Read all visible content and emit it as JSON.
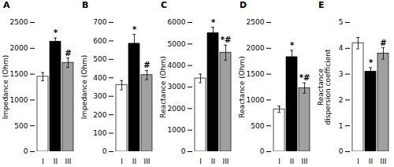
{
  "chart_data": [
    {
      "type": "bar",
      "title": "A",
      "ylabel": "Impedance (Ohm)",
      "categories": [
        "I",
        "II",
        "III"
      ],
      "values": [
        1450,
        2130,
        1720
      ],
      "errors": [
        80,
        70,
        90
      ],
      "annotations": [
        null,
        "*",
        "#"
      ],
      "colors": [
        "white",
        "black",
        "#a0a0a0"
      ],
      "ylim": [
        0,
        2500
      ],
      "yticks": [
        0,
        500,
        1000,
        1500,
        2000,
        2500
      ]
    },
    {
      "type": "bar",
      "title": "B",
      "ylabel": "Impedance (Ohm)",
      "categories": [
        "I",
        "II",
        "III"
      ],
      "values": [
        360,
        585,
        415
      ],
      "errors": [
        25,
        50,
        25
      ],
      "annotations": [
        null,
        "*",
        "#"
      ],
      "colors": [
        "white",
        "black",
        "#a0a0a0"
      ],
      "ylim": [
        0,
        700
      ],
      "yticks": [
        0,
        100,
        200,
        300,
        400,
        500,
        600,
        700
      ]
    },
    {
      "type": "bar",
      "title": "C",
      "ylabel": "Reactance (Ohm)",
      "categories": [
        "I",
        "II",
        "III"
      ],
      "values": [
        3400,
        5500,
        4600
      ],
      "errors": [
        200,
        280,
        350
      ],
      "annotations": [
        null,
        "*",
        "*#"
      ],
      "colors": [
        "white",
        "black",
        "#a0a0a0"
      ],
      "ylim": [
        0,
        6000
      ],
      "yticks": [
        0,
        1000,
        2000,
        3000,
        4000,
        5000,
        6000
      ]
    },
    {
      "type": "bar",
      "title": "D",
      "ylabel": "Reactance (Ohm)",
      "categories": [
        "I",
        "II",
        "III"
      ],
      "values": [
        820,
        1830,
        1230
      ],
      "errors": [
        60,
        130,
        100
      ],
      "annotations": [
        null,
        "*",
        "*#"
      ],
      "colors": [
        "white",
        "black",
        "#a0a0a0"
      ],
      "ylim": [
        0,
        2500
      ],
      "yticks": [
        0,
        500,
        1000,
        1500,
        2000,
        2500
      ]
    },
    {
      "type": "bar",
      "title": "E",
      "ylabel": "Reactance\ndispersion coefficient",
      "categories": [
        "I",
        "II",
        "III"
      ],
      "values": [
        4.2,
        3.1,
        3.8
      ],
      "errors": [
        0.22,
        0.15,
        0.22
      ],
      "annotations": [
        null,
        "*",
        "#"
      ],
      "colors": [
        "white",
        "black",
        "#a0a0a0"
      ],
      "ylim": [
        0,
        5
      ],
      "yticks": [
        0,
        1,
        2,
        3,
        4,
        5
      ]
    }
  ]
}
